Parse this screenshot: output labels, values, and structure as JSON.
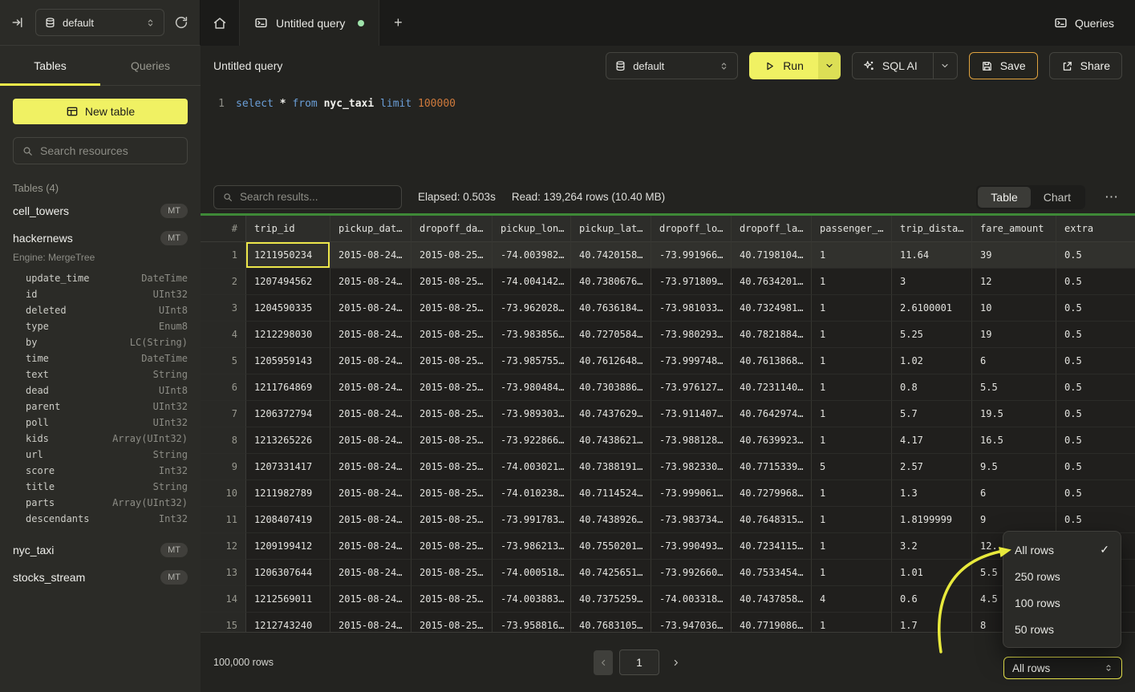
{
  "colors": {
    "accent_yellow": "#f0f163",
    "save_border_orange": "#dfa23f",
    "selected_cell_border": "#ece64a",
    "tab_dot_green": "#9fe3ab",
    "progress_green": "#3e8937",
    "annotation_arrow": "#e8e93c"
  },
  "topbar": {
    "database_select": "default",
    "tab": {
      "label": "Untitled query"
    },
    "queries_button": "Queries",
    "add_tab": "+"
  },
  "sidebar": {
    "tabs": [
      {
        "label": "Tables",
        "active": true
      },
      {
        "label": "Queries",
        "active": false
      }
    ],
    "new_table_button": "New table",
    "search_placeholder": "Search resources",
    "section_label": "Tables (4)",
    "tables": [
      {
        "name": "cell_towers",
        "badge": "MT"
      },
      {
        "name": "hackernews",
        "badge": "MT",
        "engine": "Engine: MergeTree",
        "columns": [
          {
            "name": "update_time",
            "type": "DateTime"
          },
          {
            "name": "id",
            "type": "UInt32"
          },
          {
            "name": "deleted",
            "type": "UInt8"
          },
          {
            "name": "type",
            "type": "Enum8"
          },
          {
            "name": "by",
            "type": "LC(String)"
          },
          {
            "name": "time",
            "type": "DateTime"
          },
          {
            "name": "text",
            "type": "String"
          },
          {
            "name": "dead",
            "type": "UInt8"
          },
          {
            "name": "parent",
            "type": "UInt32"
          },
          {
            "name": "poll",
            "type": "UInt32"
          },
          {
            "name": "kids",
            "type": "Array(UInt32)"
          },
          {
            "name": "url",
            "type": "String"
          },
          {
            "name": "score",
            "type": "Int32"
          },
          {
            "name": "title",
            "type": "String"
          },
          {
            "name": "parts",
            "type": "Array(UInt32)"
          },
          {
            "name": "descendants",
            "type": "Int32"
          }
        ]
      },
      {
        "name": "nyc_taxi",
        "badge": "MT"
      },
      {
        "name": "stocks_stream",
        "badge": "MT"
      }
    ]
  },
  "query_toolbar": {
    "title": "Untitled query",
    "database_select": "default",
    "run_button": "Run",
    "sql_ai_button": "SQL AI",
    "save_button": "Save",
    "share_button": "Share"
  },
  "editor": {
    "line_number": "1",
    "code": {
      "kw1": "select",
      "star": "*",
      "kw2": "from",
      "table": "nyc_taxi",
      "kw3": "limit",
      "number": "100000"
    }
  },
  "results_toolbar": {
    "search_placeholder": "Search results...",
    "elapsed": "Elapsed: 0.503s",
    "read": "Read: 139,264 rows (10.40 MB)",
    "view_toggle": [
      {
        "label": "Table",
        "active": true
      },
      {
        "label": "Chart",
        "active": false
      }
    ],
    "more_icon": "⋯"
  },
  "table": {
    "columns": [
      "#",
      "trip_id",
      "pickup_dat…",
      "dropoff_da…",
      "pickup_lon…",
      "pickup_lat…",
      "dropoff_lo…",
      "dropoff_la…",
      "passenger_…",
      "trip_dista…",
      "fare_amount",
      "extra"
    ],
    "rows": [
      {
        "n": "1",
        "highlight": true,
        "selected_cell": 0,
        "cells": [
          "1211950234",
          "2015-08-24…",
          "2015-08-25…",
          "-74.003982…",
          "40.7420158…",
          "-73.991966…",
          "40.7198104…",
          "1",
          "11.64",
          "39",
          "0.5"
        ]
      },
      {
        "n": "2",
        "cells": [
          "1207494562",
          "2015-08-24…",
          "2015-08-25…",
          "-74.004142…",
          "40.7380676…",
          "-73.971809…",
          "40.7634201…",
          "1",
          "3",
          "12",
          "0.5"
        ]
      },
      {
        "n": "3",
        "cells": [
          "1204590335",
          "2015-08-24…",
          "2015-08-25…",
          "-73.962028…",
          "40.7636184…",
          "-73.981033…",
          "40.7324981…",
          "1",
          "2.6100001",
          "10",
          "0.5"
        ]
      },
      {
        "n": "4",
        "cells": [
          "1212298030",
          "2015-08-24…",
          "2015-08-25…",
          "-73.983856…",
          "40.7270584…",
          "-73.980293…",
          "40.7821884…",
          "1",
          "5.25",
          "19",
          "0.5"
        ]
      },
      {
        "n": "5",
        "cells": [
          "1205959143",
          "2015-08-24…",
          "2015-08-25…",
          "-73.985755…",
          "40.7612648…",
          "-73.999748…",
          "40.7613868…",
          "1",
          "1.02",
          "6",
          "0.5"
        ]
      },
      {
        "n": "6",
        "cells": [
          "1211764869",
          "2015-08-24…",
          "2015-08-25…",
          "-73.980484…",
          "40.7303886…",
          "-73.976127…",
          "40.7231140…",
          "1",
          "0.8",
          "5.5",
          "0.5"
        ]
      },
      {
        "n": "7",
        "cells": [
          "1206372794",
          "2015-08-24…",
          "2015-08-25…",
          "-73.989303…",
          "40.7437629…",
          "-73.911407…",
          "40.7642974…",
          "1",
          "5.7",
          "19.5",
          "0.5"
        ]
      },
      {
        "n": "8",
        "cells": [
          "1213265226",
          "2015-08-24…",
          "2015-08-25…",
          "-73.922866…",
          "40.7438621…",
          "-73.988128…",
          "40.7639923…",
          "1",
          "4.17",
          "16.5",
          "0.5"
        ]
      },
      {
        "n": "9",
        "cells": [
          "1207331417",
          "2015-08-24…",
          "2015-08-25…",
          "-74.003021…",
          "40.7388191…",
          "-73.982330…",
          "40.7715339…",
          "5",
          "2.57",
          "9.5",
          "0.5"
        ]
      },
      {
        "n": "10",
        "cells": [
          "1211982789",
          "2015-08-24…",
          "2015-08-25…",
          "-74.010238…",
          "40.7114524…",
          "-73.999061…",
          "40.7279968…",
          "1",
          "1.3",
          "6",
          "0.5"
        ]
      },
      {
        "n": "11",
        "cells": [
          "1208407419",
          "2015-08-24…",
          "2015-08-25…",
          "-73.991783…",
          "40.7438926…",
          "-73.983734…",
          "40.7648315…",
          "1",
          "1.8199999",
          "9",
          "0.5"
        ]
      },
      {
        "n": "12",
        "cells": [
          "1209199412",
          "2015-08-24…",
          "2015-08-25…",
          "-73.986213…",
          "40.7550201…",
          "-73.990493…",
          "40.7234115…",
          "1",
          "3.2",
          "12.",
          ""
        ]
      },
      {
        "n": "13",
        "cells": [
          "1206307644",
          "2015-08-24…",
          "2015-08-25…",
          "-74.000518…",
          "40.7425651…",
          "-73.992660…",
          "40.7533454…",
          "1",
          "1.01",
          "5.5",
          ""
        ]
      },
      {
        "n": "14",
        "cells": [
          "1212569011",
          "2015-08-24…",
          "2015-08-25…",
          "-74.003883…",
          "40.7375259…",
          "-74.003318…",
          "40.7437858…",
          "4",
          "0.6",
          "4.5",
          ""
        ]
      },
      {
        "n": "15",
        "cells": [
          "1212743240",
          "2015-08-24…",
          "2015-08-25…",
          "-73.958816…",
          "40.7683105…",
          "-73.947036…",
          "40.7719086…",
          "1",
          "1.7",
          "8",
          ""
        ]
      }
    ]
  },
  "rows_menu": {
    "check_glyph": "✓",
    "items": [
      {
        "label": "All rows",
        "checked": true
      },
      {
        "label": "250 rows"
      },
      {
        "label": "100 rows"
      },
      {
        "label": "50 rows"
      }
    ]
  },
  "footer": {
    "row_count": "100,000 rows",
    "page": "1",
    "page_size_select": "All rows"
  }
}
